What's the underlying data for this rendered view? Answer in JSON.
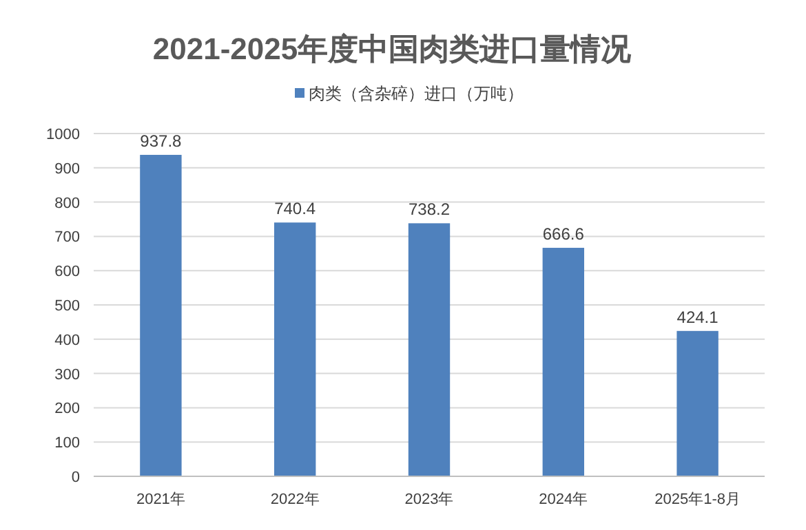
{
  "chart_data": {
    "type": "bar",
    "title": "2021-2025年度中国肉类进口量情况",
    "categories": [
      "2021年",
      "2022年",
      "2023年",
      "2024年",
      "2025年1-8月"
    ],
    "series": [
      {
        "name": "肉类（含杂碎）进口（万吨）",
        "color": "#4f81bd",
        "values": [
          937.8,
          740.4,
          738.2,
          666.6,
          424.1
        ]
      }
    ],
    "ylim": [
      0,
      1000
    ],
    "yticks": [
      0,
      100,
      200,
      300,
      400,
      500,
      600,
      700,
      800,
      900,
      1000
    ],
    "grid": "y",
    "legend": "top",
    "data_labels": true
  }
}
